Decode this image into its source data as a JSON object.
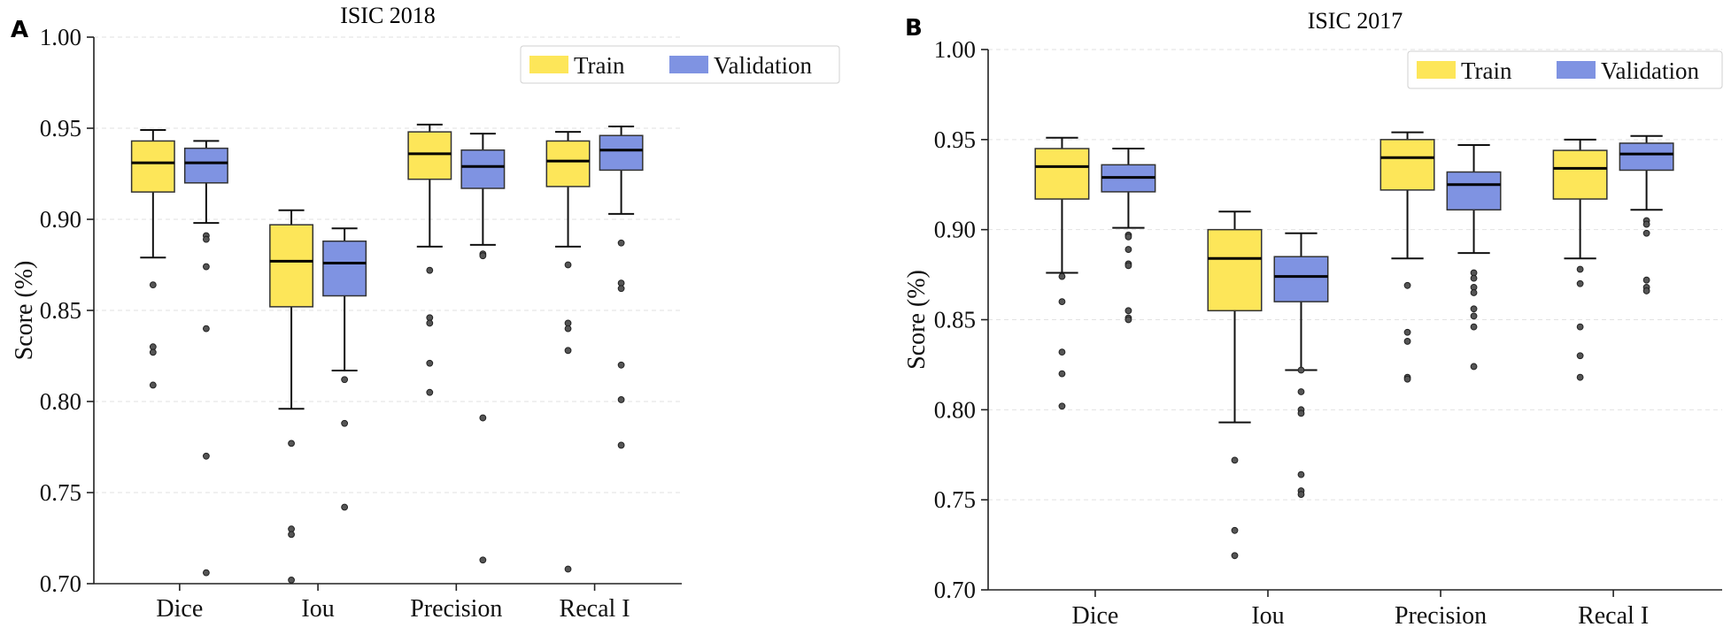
{
  "colors": {
    "train": "#fde659",
    "validation": "#7f93e2",
    "outlier": "#555555",
    "edge": "#333333"
  },
  "chart_data": [
    {
      "panel": "A",
      "type": "box",
      "title": "ISIC 2018",
      "ylabel": "Score (%)",
      "ylim": [
        0.7,
        1.0
      ],
      "yticks": [
        "0.70",
        "0.75",
        "0.80",
        "0.85",
        "0.90",
        "0.95",
        "1.00"
      ],
      "categories": [
        "Dice",
        "Iou",
        "Precision",
        "Recal I"
      ],
      "grid": true,
      "legend": {
        "position": "top-right",
        "entries": [
          "Train",
          "Validation"
        ]
      },
      "series": [
        {
          "name": "Train",
          "boxes": [
            {
              "whisker_low": 0.879,
              "q1": 0.915,
              "median": 0.931,
              "q3": 0.943,
              "whisker_high": 0.949,
              "outliers": [
                0.864,
                0.83,
                0.827,
                0.809
              ]
            },
            {
              "whisker_low": 0.796,
              "q1": 0.852,
              "median": 0.877,
              "q3": 0.897,
              "whisker_high": 0.905,
              "outliers": [
                0.777,
                0.73,
                0.727,
                0.702
              ]
            },
            {
              "whisker_low": 0.885,
              "q1": 0.922,
              "median": 0.936,
              "q3": 0.948,
              "whisker_high": 0.952,
              "outliers": [
                0.872,
                0.846,
                0.843,
                0.821,
                0.805
              ]
            },
            {
              "whisker_low": 0.885,
              "q1": 0.918,
              "median": 0.932,
              "q3": 0.943,
              "whisker_high": 0.948,
              "outliers": [
                0.875,
                0.843,
                0.84,
                0.828,
                0.708
              ]
            }
          ]
        },
        {
          "name": "Validation",
          "boxes": [
            {
              "whisker_low": 0.898,
              "q1": 0.92,
              "median": 0.931,
              "q3": 0.939,
              "whisker_high": 0.943,
              "outliers": [
                0.891,
                0.889,
                0.874,
                0.84,
                0.77,
                0.706
              ]
            },
            {
              "whisker_low": 0.817,
              "q1": 0.858,
              "median": 0.876,
              "q3": 0.888,
              "whisker_high": 0.895,
              "outliers": [
                0.812,
                0.788,
                0.742
              ]
            },
            {
              "whisker_low": 0.886,
              "q1": 0.917,
              "median": 0.929,
              "q3": 0.938,
              "whisker_high": 0.947,
              "outliers": [
                0.881,
                0.88,
                0.791,
                0.713
              ]
            },
            {
              "whisker_low": 0.903,
              "q1": 0.927,
              "median": 0.938,
              "q3": 0.946,
              "whisker_high": 0.951,
              "outliers": [
                0.887,
                0.865,
                0.862,
                0.82,
                0.801,
                0.776
              ]
            }
          ]
        }
      ]
    },
    {
      "panel": "B",
      "type": "box",
      "title": "ISIC 2017",
      "ylabel": "Score (%)",
      "ylim": [
        0.7,
        1.0
      ],
      "yticks": [
        "0.70",
        "0.75",
        "0.80",
        "0.85",
        "0.90",
        "0.95",
        "1.00"
      ],
      "categories": [
        "Dice",
        "Iou",
        "Precision",
        "Recal I"
      ],
      "grid": true,
      "legend": {
        "position": "top-right",
        "entries": [
          "Train",
          "Validation"
        ]
      },
      "series": [
        {
          "name": "Train",
          "boxes": [
            {
              "whisker_low": 0.876,
              "q1": 0.917,
              "median": 0.935,
              "q3": 0.945,
              "whisker_high": 0.951,
              "outliers": [
                0.874,
                0.86,
                0.832,
                0.82,
                0.802
              ]
            },
            {
              "whisker_low": 0.793,
              "q1": 0.855,
              "median": 0.884,
              "q3": 0.9,
              "whisker_high": 0.91,
              "outliers": [
                0.772,
                0.733,
                0.719
              ]
            },
            {
              "whisker_low": 0.884,
              "q1": 0.922,
              "median": 0.94,
              "q3": 0.95,
              "whisker_high": 0.954,
              "outliers": [
                0.869,
                0.843,
                0.838,
                0.818,
                0.817
              ]
            },
            {
              "whisker_low": 0.884,
              "q1": 0.917,
              "median": 0.934,
              "q3": 0.944,
              "whisker_high": 0.95,
              "outliers": [
                0.878,
                0.87,
                0.846,
                0.83,
                0.818
              ]
            }
          ]
        },
        {
          "name": "Validation",
          "boxes": [
            {
              "whisker_low": 0.901,
              "q1": 0.921,
              "median": 0.929,
              "q3": 0.936,
              "whisker_high": 0.945,
              "outliers": [
                0.897,
                0.896,
                0.889,
                0.881,
                0.88,
                0.855,
                0.851,
                0.85
              ]
            },
            {
              "whisker_low": 0.822,
              "q1": 0.86,
              "median": 0.874,
              "q3": 0.885,
              "whisker_high": 0.898,
              "outliers": [
                0.822,
                0.81,
                0.8,
                0.798,
                0.764,
                0.755,
                0.753
              ]
            },
            {
              "whisker_low": 0.887,
              "q1": 0.911,
              "median": 0.925,
              "q3": 0.932,
              "whisker_high": 0.947,
              "outliers": [
                0.876,
                0.873,
                0.868,
                0.865,
                0.856,
                0.852,
                0.846,
                0.824
              ]
            },
            {
              "whisker_low": 0.911,
              "q1": 0.933,
              "median": 0.942,
              "q3": 0.948,
              "whisker_high": 0.952,
              "outliers": [
                0.905,
                0.903,
                0.898,
                0.872,
                0.868,
                0.866
              ]
            }
          ]
        }
      ]
    }
  ]
}
